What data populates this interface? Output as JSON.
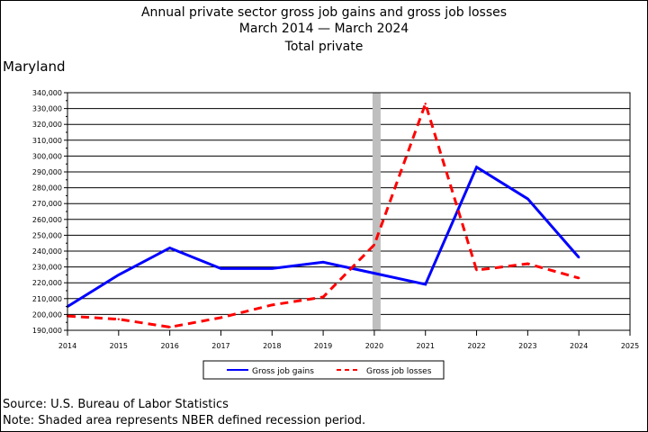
{
  "title_lines": [
    "Annual private sector gross job gains and gross job losses",
    "March 2014 — March 2024",
    "Total private"
  ],
  "state": "Maryland",
  "source": "Source: U.S. Bureau of Labor Statistics",
  "note": "Note: Shaded area represents NBER defined recession period.",
  "chart_data": {
    "type": "line",
    "x": [
      2014,
      2015,
      2016,
      2017,
      2018,
      2019,
      2020,
      2021,
      2022,
      2023,
      2024
    ],
    "xlim": [
      2014,
      2025
    ],
    "x_ticks": [
      "2014",
      "2015",
      "2016",
      "2017",
      "2018",
      "2019",
      "2020",
      "2021",
      "2022",
      "2023",
      "2024",
      "2025"
    ],
    "ylim": [
      190000,
      340000
    ],
    "y_ticks": [
      "190,000",
      "200,000",
      "210,000",
      "220,000",
      "230,000",
      "240,000",
      "250,000",
      "260,000",
      "270,000",
      "280,000",
      "290,000",
      "300,000",
      "310,000",
      "320,000",
      "330,000",
      "340,000"
    ],
    "grid": true,
    "recession": [
      2020,
      2020.15
    ],
    "series": [
      {
        "name": "Gross job gains",
        "color": "#0000ff",
        "style": "solid",
        "values": [
          205000,
          225000,
          242000,
          229000,
          229000,
          233000,
          226000,
          219000,
          293000,
          273000,
          236000
        ]
      },
      {
        "name": "Gross job losses",
        "color": "#ff0000",
        "style": "dashed",
        "values": [
          199000,
          197000,
          192000,
          198000,
          206000,
          211000,
          244000,
          333000,
          228000,
          232000,
          223000
        ]
      }
    ],
    "legend_position": "bottom"
  }
}
